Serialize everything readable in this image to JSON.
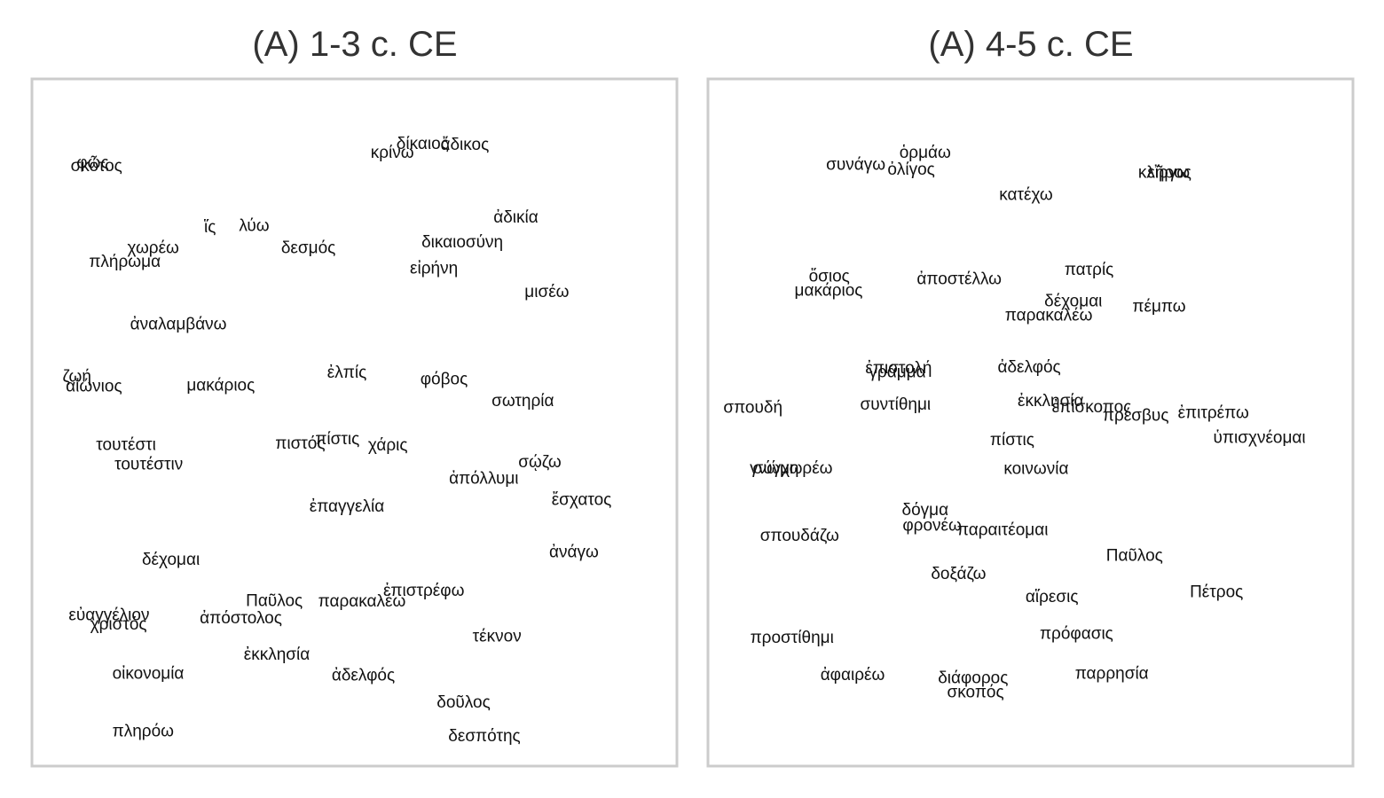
{
  "chart_data": [
    {
      "type": "scatter",
      "title": "(A) 1-3 c. CE",
      "xlim": [
        0,
        1
      ],
      "ylim": [
        0,
        1
      ],
      "points": [
        {
          "label": "φῶς",
          "x": 0.085,
          "y": 0.885
        },
        {
          "label": "σκότος",
          "x": 0.091,
          "y": 0.88
        },
        {
          "label": "κρίνω",
          "x": 0.56,
          "y": 0.9
        },
        {
          "label": "δίκαιος",
          "x": 0.608,
          "y": 0.913
        },
        {
          "label": "ἄδικος",
          "x": 0.675,
          "y": 0.912
        },
        {
          "label": "ἀδικία",
          "x": 0.756,
          "y": 0.804
        },
        {
          "label": "ἵς",
          "x": 0.271,
          "y": 0.789
        },
        {
          "label": "λύω",
          "x": 0.341,
          "y": 0.791
        },
        {
          "label": "χωρέω",
          "x": 0.181,
          "y": 0.758
        },
        {
          "label": "δεσμός",
          "x": 0.427,
          "y": 0.758
        },
        {
          "label": "δικαιοσύνη",
          "x": 0.671,
          "y": 0.767
        },
        {
          "label": "πλήρωμα",
          "x": 0.136,
          "y": 0.738
        },
        {
          "label": "εἰρήνη",
          "x": 0.626,
          "y": 0.728
        },
        {
          "label": "μισέω",
          "x": 0.805,
          "y": 0.693
        },
        {
          "label": "ἀναλαμβάνω",
          "x": 0.221,
          "y": 0.645
        },
        {
          "label": "ζωή",
          "x": 0.06,
          "y": 0.567
        },
        {
          "label": "αἰώνιος",
          "x": 0.087,
          "y": 0.553
        },
        {
          "label": "μακάριος",
          "x": 0.288,
          "y": 0.554
        },
        {
          "label": "ἐλπίς",
          "x": 0.488,
          "y": 0.573
        },
        {
          "label": "φόβος",
          "x": 0.642,
          "y": 0.563
        },
        {
          "label": "σωτηρία",
          "x": 0.767,
          "y": 0.531
        },
        {
          "label": "τουτέστι",
          "x": 0.138,
          "y": 0.466
        },
        {
          "label": "πιστός",
          "x": 0.414,
          "y": 0.468
        },
        {
          "label": "πίστις",
          "x": 0.473,
          "y": 0.474
        },
        {
          "label": "χάρις",
          "x": 0.553,
          "y": 0.465
        },
        {
          "label": "τουτέστιν",
          "x": 0.174,
          "y": 0.437
        },
        {
          "label": "σῴζω",
          "x": 0.794,
          "y": 0.44
        },
        {
          "label": "ἀπόλλυμι",
          "x": 0.705,
          "y": 0.416
        },
        {
          "label": "ἔσχατος",
          "x": 0.86,
          "y": 0.384
        },
        {
          "label": "ἐπαγγελία",
          "x": 0.488,
          "y": 0.374
        },
        {
          "label": "ἀνάγω",
          "x": 0.848,
          "y": 0.306
        },
        {
          "label": "δέχομαι",
          "x": 0.209,
          "y": 0.295
        },
        {
          "label": "ἐπιστρέφω",
          "x": 0.61,
          "y": 0.249
        },
        {
          "label": "Παῦλος",
          "x": 0.373,
          "y": 0.234
        },
        {
          "label": "παρακαλέω",
          "x": 0.512,
          "y": 0.233
        },
        {
          "label": "εὐαγγέλιον",
          "x": 0.111,
          "y": 0.213
        },
        {
          "label": "χριστός",
          "x": 0.126,
          "y": 0.199
        },
        {
          "label": "ἀπόστολος",
          "x": 0.32,
          "y": 0.208
        },
        {
          "label": "τέκνον",
          "x": 0.726,
          "y": 0.181
        },
        {
          "label": "ἐκκλησία",
          "x": 0.377,
          "y": 0.154
        },
        {
          "label": "οἰκονομία",
          "x": 0.173,
          "y": 0.126
        },
        {
          "label": "ἀδελφός",
          "x": 0.514,
          "y": 0.123
        },
        {
          "label": "δοῦλος",
          "x": 0.673,
          "y": 0.083
        },
        {
          "label": "πληρόω",
          "x": 0.165,
          "y": 0.04
        },
        {
          "label": "δεσπότης",
          "x": 0.706,
          "y": 0.033
        }
      ]
    },
    {
      "type": "scatter",
      "title": "(A) 4-5 c. CE",
      "xlim": [
        0,
        1
      ],
      "ylim": [
        0,
        1
      ],
      "points": [
        {
          "label": "ὁρμάω",
          "x": 0.333,
          "y": 0.9
        },
        {
          "label": "συνάγω",
          "x": 0.223,
          "y": 0.882
        },
        {
          "label": "ὀλίγος",
          "x": 0.311,
          "y": 0.875
        },
        {
          "label": "κλῆρος",
          "x": 0.713,
          "y": 0.87
        },
        {
          "label": "εἴργω",
          "x": 0.719,
          "y": 0.87
        },
        {
          "label": "κατέχω",
          "x": 0.493,
          "y": 0.837
        },
        {
          "label": "ὅσιος",
          "x": 0.181,
          "y": 0.716
        },
        {
          "label": "μακάριος",
          "x": 0.18,
          "y": 0.695
        },
        {
          "label": "ἀποστέλλω",
          "x": 0.387,
          "y": 0.712
        },
        {
          "label": "πατρίς",
          "x": 0.593,
          "y": 0.726
        },
        {
          "label": "δέχομαι",
          "x": 0.568,
          "y": 0.679
        },
        {
          "label": "παρακαλέω",
          "x": 0.529,
          "y": 0.658
        },
        {
          "label": "πέμπω",
          "x": 0.704,
          "y": 0.671
        },
        {
          "label": "ἐπιστολή",
          "x": 0.291,
          "y": 0.58
        },
        {
          "label": "γράμμα",
          "x": 0.289,
          "y": 0.574
        },
        {
          "label": "ἀδελφός",
          "x": 0.498,
          "y": 0.581
        },
        {
          "label": "ἐκκλησία",
          "x": 0.532,
          "y": 0.531
        },
        {
          "label": "ἐπίσκοπος",
          "x": 0.597,
          "y": 0.522
        },
        {
          "label": "πρέσβυς",
          "x": 0.667,
          "y": 0.509
        },
        {
          "label": "ἐπιτρέπω",
          "x": 0.79,
          "y": 0.513
        },
        {
          "label": "σπουδή",
          "x": 0.06,
          "y": 0.521
        },
        {
          "label": "συντίθημι",
          "x": 0.286,
          "y": 0.526
        },
        {
          "label": "ὑπισχνέομαι",
          "x": 0.863,
          "y": 0.476
        },
        {
          "label": "πίστις",
          "x": 0.471,
          "y": 0.473
        },
        {
          "label": "γνώμη",
          "x": 0.094,
          "y": 0.431
        },
        {
          "label": "σύγχωρέω",
          "x": 0.123,
          "y": 0.431
        },
        {
          "label": "κοινωνία",
          "x": 0.509,
          "y": 0.43
        },
        {
          "label": "δόγμα",
          "x": 0.333,
          "y": 0.369
        },
        {
          "label": "φρονέω",
          "x": 0.344,
          "y": 0.346
        },
        {
          "label": "παραιτέομαι",
          "x": 0.456,
          "y": 0.339
        },
        {
          "label": "σπουδάζω",
          "x": 0.134,
          "y": 0.331
        },
        {
          "label": "Παῦλος",
          "x": 0.665,
          "y": 0.301
        },
        {
          "label": "δοξάζω",
          "x": 0.386,
          "y": 0.274
        },
        {
          "label": "αἵρεσις",
          "x": 0.534,
          "y": 0.24
        },
        {
          "label": "Πέτρος",
          "x": 0.795,
          "y": 0.247
        },
        {
          "label": "πρόφασις",
          "x": 0.573,
          "y": 0.185
        },
        {
          "label": "προστίθημι",
          "x": 0.122,
          "y": 0.179
        },
        {
          "label": "ἀφαιρέω",
          "x": 0.218,
          "y": 0.124
        },
        {
          "label": "παρρησία",
          "x": 0.629,
          "y": 0.126
        },
        {
          "label": "διάφορος",
          "x": 0.409,
          "y": 0.119
        },
        {
          "label": "σκοπός",
          "x": 0.413,
          "y": 0.098
        }
      ]
    }
  ]
}
